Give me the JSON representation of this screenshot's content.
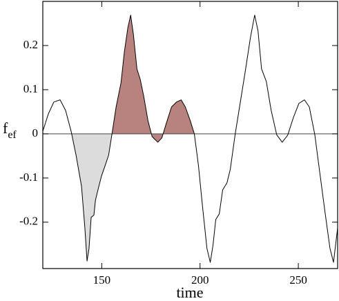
{
  "chart_data": {
    "type": "line",
    "xlabel": "time",
    "ylabel": "f",
    "ylabel_sub": "ef",
    "xlim": [
      120,
      270
    ],
    "ylim": [
      -0.305,
      0.3
    ],
    "xticks": [
      150,
      200,
      250
    ],
    "yticks": [
      -0.2,
      -0.1,
      0,
      0.1,
      0.2
    ],
    "zero_line": true,
    "color": "#000000",
    "x": [
      120,
      122.8,
      125.6,
      128.8,
      131.6,
      134.4,
      136.9,
      139.7,
      141.4,
      142.5,
      143.5,
      144.6,
      146,
      146.8,
      148.5,
      149.9,
      151.7,
      153.5,
      155.2,
      157.3,
      159.8,
      161.5,
      163.3,
      164.7,
      166.1,
      167.9,
      169.6,
      171.4,
      173.5,
      175.6,
      178.5,
      180.6,
      182.7,
      185.5,
      188,
      190.4,
      192.5,
      195,
      197.1,
      199.2,
      201.3,
      203.5,
      205.2,
      206.6,
      208,
      209.8,
      211.5,
      213.7,
      215.4,
      217.9,
      220.4,
      223.2,
      225.6,
      227.8,
      229.5,
      231.3,
      233.7,
      236.2,
      239,
      241.8,
      244.6,
      247.5,
      250.3,
      253.1,
      255.6,
      258.4,
      260.9,
      263.7,
      266.1,
      267.9,
      270
    ],
    "values": [
      0.006,
      0.045,
      0.072,
      0.077,
      0.053,
      0.006,
      -0.048,
      -0.119,
      -0.213,
      -0.288,
      -0.26,
      -0.189,
      -0.184,
      -0.15,
      -0.119,
      -0.095,
      -0.072,
      -0.048,
      0,
      0.061,
      0.116,
      0.186,
      0.241,
      0.269,
      0.225,
      0.147,
      0.123,
      0.084,
      0.03,
      -0.006,
      -0.019,
      -0.009,
      0.022,
      0.061,
      0.072,
      0.077,
      0.061,
      0.03,
      0,
      -0.072,
      -0.166,
      -0.259,
      -0.291,
      -0.252,
      -0.194,
      -0.181,
      -0.127,
      -0.111,
      -0.08,
      0,
      0.069,
      0.147,
      0.217,
      0.269,
      0.233,
      0.147,
      0.119,
      0.053,
      -0.002,
      -0.019,
      -0.003,
      0.037,
      0.069,
      0.077,
      0.061,
      -0.002,
      -0.087,
      -0.181,
      -0.259,
      -0.291,
      -0.213
    ],
    "shaded": [
      {
        "xrange": [
          134.4,
          155.2
        ],
        "color": "#dcdcdc"
      },
      {
        "xrange": [
          155.2,
          197.1
        ],
        "color": "#b8837f"
      }
    ]
  }
}
